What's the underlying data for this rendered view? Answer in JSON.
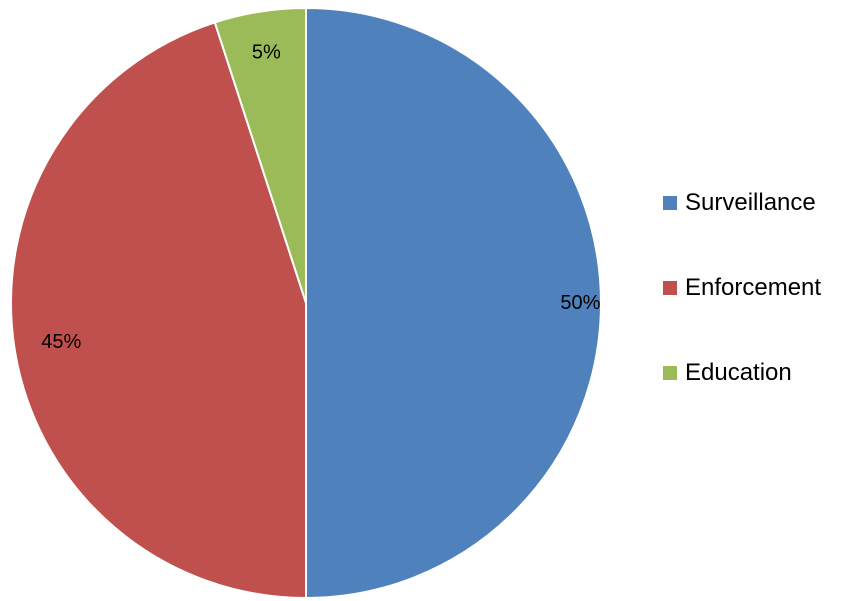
{
  "chart_data": {
    "type": "pie",
    "title": "",
    "categories": [
      "Surveillance",
      "Enforcement",
      "Education"
    ],
    "values": [
      50,
      45,
      5
    ],
    "data_labels": [
      "50%",
      "45%",
      "5%"
    ],
    "colors": [
      "#4F81BD",
      "#C0504D",
      "#9BBB59"
    ],
    "legend_position": "right",
    "start_angle": "top, clockwise"
  }
}
